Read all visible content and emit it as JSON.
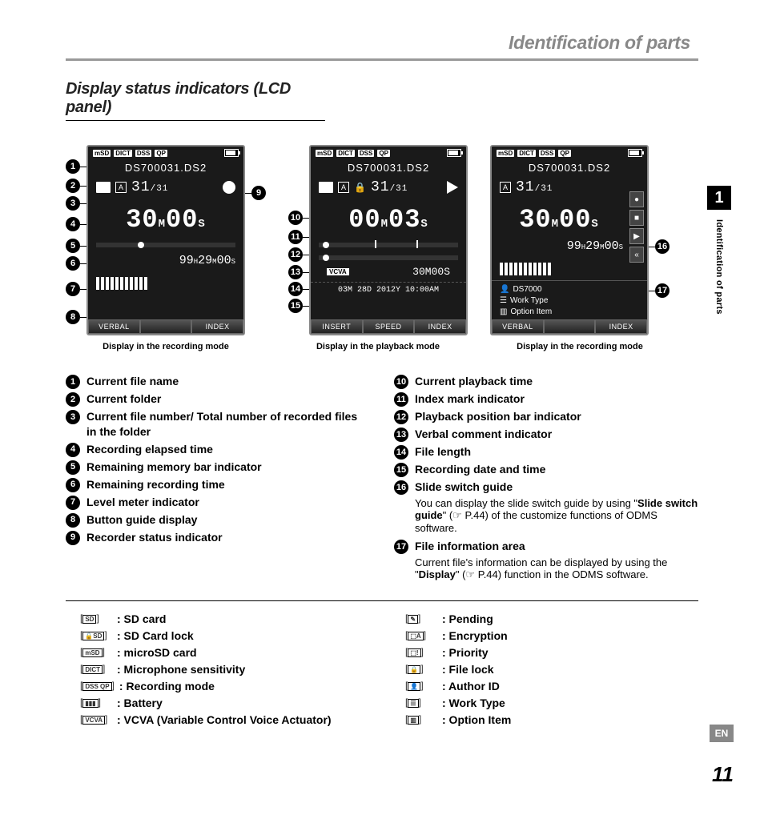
{
  "header_title": "Identification of parts",
  "section_title": "Display status indicators (LCD panel)",
  "sidebar": {
    "chapter": "1",
    "label": "Identification of parts"
  },
  "lang_badge": "EN",
  "page_number": "11",
  "screens": {
    "s1": {
      "caption": "Display in the recording mode",
      "filename": "DS700031.DS2",
      "folder": "A",
      "file_counter": "31",
      "file_total": "/31",
      "big_time": "30",
      "big_time_m": "M",
      "big_time_s": "00",
      "big_time_s_lbl": "S",
      "remaining": "99",
      "remaining_h": "H",
      "remaining_m": "29",
      "remaining_m_lbl": "M",
      "remaining_s": "00",
      "remaining_s_lbl": "S",
      "btn_left": "VERBAL",
      "btn_right": "INDEX",
      "callouts_left": [
        "1",
        "2",
        "3",
        "4",
        "5",
        "6",
        "7",
        "8"
      ],
      "callouts_right": [
        "9"
      ]
    },
    "s2": {
      "caption": "Display in the playback mode",
      "filename": "DS700031.DS2",
      "folder": "A",
      "file_counter": "31",
      "file_total": "/31",
      "big_time": "00",
      "big_time_m": "M",
      "big_time_s": "03",
      "big_time_s_lbl": "S",
      "vcva_label": "VCVA",
      "length": "30",
      "length_m": "M",
      "length_s": "00",
      "length_s_lbl": "S",
      "date": "03M 28D 2012Y 10:00AM",
      "btn_left": "INSERT",
      "btn_mid": "SPEED",
      "btn_right": "INDEX",
      "callouts_left": [
        "10",
        "11",
        "12",
        "13",
        "14",
        "15"
      ]
    },
    "s3": {
      "caption": "Display in the recording mode",
      "filename": "DS700031.DS2",
      "folder": "A",
      "file_counter": "31",
      "file_total": "/31",
      "big_time": "30",
      "big_time_m": "M",
      "big_time_s": "00",
      "big_time_s_lbl": "S",
      "remaining": "99",
      "remaining_h": "H",
      "remaining_m": "29",
      "remaining_m_lbl": "M",
      "remaining_s": "00",
      "remaining_s_lbl": "S",
      "info1": "DS7000",
      "info2": "Work Type",
      "info3": "Option Item",
      "btn_left": "VERBAL",
      "btn_right": "INDEX",
      "callouts_right": [
        "16",
        "17"
      ]
    }
  },
  "legend_left": [
    {
      "n": "1",
      "t": "Current file name"
    },
    {
      "n": "2",
      "t": "Current folder"
    },
    {
      "n": "3",
      "t": "Current file number/ Total number of recorded files in the folder"
    },
    {
      "n": "4",
      "t": "Recording elapsed time"
    },
    {
      "n": "5",
      "t": "Remaining memory bar indicator"
    },
    {
      "n": "6",
      "t": "Remaining recording time"
    },
    {
      "n": "7",
      "t": "Level meter indicator"
    },
    {
      "n": "8",
      "t": "Button guide display"
    },
    {
      "n": "9",
      "t": "Recorder status indicator"
    }
  ],
  "legend_right": [
    {
      "n": "10",
      "t": "Current playback time"
    },
    {
      "n": "11",
      "t": "Index mark indicator"
    },
    {
      "n": "12",
      "t": "Playback position bar indicator"
    },
    {
      "n": "13",
      "t": "Verbal comment indicator"
    },
    {
      "n": "14",
      "t": "File length"
    },
    {
      "n": "15",
      "t": "Recording date and time"
    },
    {
      "n": "16",
      "t": "Slide switch guide",
      "d1": "You can display the slide switch guide by using \"",
      "d1b": "Slide switch guide",
      "d1c": "\" (☞ P.44) of the customize functions of ODMS software."
    },
    {
      "n": "17",
      "t": "File information area",
      "d1": "Current file's information can be displayed by using the \"",
      "d1b": "Display",
      "d1c": "\" (☞ P.44) function in the ODMS software."
    }
  ],
  "icons_left": [
    {
      "ic": "SD",
      "lbl": ": SD card"
    },
    {
      "ic": "🔒SD",
      "lbl": ": SD Card lock"
    },
    {
      "ic": "mSD",
      "lbl": ": microSD card"
    },
    {
      "ic": "DICT",
      "lbl": ": Microphone sensitivity"
    },
    {
      "ic": "DSS QP",
      "lbl": ": Recording mode"
    },
    {
      "ic": "▮▮▮",
      "lbl": ": Battery"
    },
    {
      "ic": "VCVA",
      "lbl": ": VCVA (Variable Control Voice Actuator)",
      "indent": "           Actuator)"
    }
  ],
  "icons_right": [
    {
      "ic": "✎",
      "lbl": ": Pending"
    },
    {
      "ic": "⬚A",
      "lbl": ": Encryption"
    },
    {
      "ic": "⬚!",
      "lbl": ": Priority"
    },
    {
      "ic": "🔒",
      "lbl": ": File lock"
    },
    {
      "ic": "👤",
      "lbl": ": Author ID"
    },
    {
      "ic": "☰",
      "lbl": ": Work Type"
    },
    {
      "ic": "▥",
      "lbl": ": Option Item"
    }
  ]
}
